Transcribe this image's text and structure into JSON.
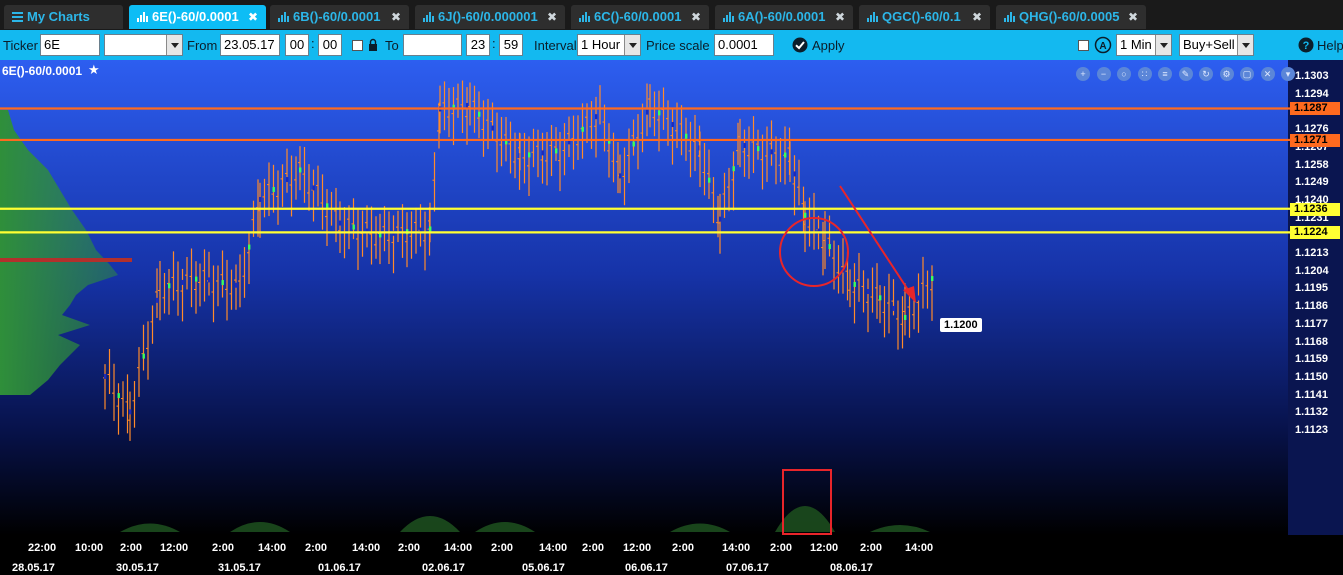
{
  "tabs": [
    {
      "label": "My Charts",
      "kind": "menu"
    },
    {
      "label": "6E()-60/0.0001",
      "active": true
    },
    {
      "label": "6B()-60/0.0001"
    },
    {
      "label": "6J()-60/0.000001"
    },
    {
      "label": "6C()-60/0.0001"
    },
    {
      "label": "6A()-60/0.0001"
    },
    {
      "label": "QGC()-60/0.1"
    },
    {
      "label": "QHG()-60/0.0005"
    }
  ],
  "toolbar": {
    "ticker_label": "Ticker",
    "ticker_value": "6E",
    "ticker_select_value": "",
    "from_label": "From",
    "from_date": "23.05.17",
    "from_hour": "00",
    "from_minute": "00",
    "to_label": "To",
    "to_date": "",
    "to_hour": "23",
    "to_minute": "59",
    "interval_label": "Interval",
    "interval_value": "1 Hour",
    "price_scale_label": "Price scale",
    "price_scale_value": "0.0001",
    "apply_label": "Apply",
    "minute_value": "1 Min",
    "side_value": "Buy+Sell",
    "help_label": "Help"
  },
  "chart": {
    "symbol_title": "6E()-60/0.0001",
    "current_price": "1.1200",
    "price_axis": [
      "1.1303",
      "1.1294",
      "1.1285",
      "1.1276",
      "1.1267",
      "1.1258",
      "1.1249",
      "1.1240",
      "1.1231",
      "1.1222",
      "1.1213",
      "1.1204",
      "1.1195",
      "1.1186",
      "1.1177",
      "1.1168",
      "1.1159",
      "1.1150",
      "1.1141",
      "1.1132",
      "1.1123"
    ],
    "levels": [
      {
        "price": "1.1287",
        "color": "#ff6a1f"
      },
      {
        "price": "1.1271",
        "color": "#ff6a1f"
      },
      {
        "price": "1.1236",
        "color": "#ffff33"
      },
      {
        "price": "1.1224",
        "color": "#ffff33"
      }
    ],
    "time_labels": [
      "22:00",
      "10:00",
      "2:00",
      "12:00",
      "2:00",
      "14:00",
      "2:00",
      "14:00",
      "2:00",
      "14:00",
      "2:00",
      "14:00",
      "2:00",
      "12:00",
      "2:00",
      "14:00",
      "2:00",
      "12:00",
      "2:00",
      "14:00"
    ],
    "date_labels": [
      "28.05.17",
      "30.05.17",
      "31.05.17",
      "01.06.17",
      "02.06.17",
      "05.06.17",
      "06.06.17",
      "07.06.17",
      "08.06.17"
    ],
    "controls": [
      "zoom-in-icon",
      "zoom-out-icon",
      "zoom-reset-icon",
      "grid-icon",
      "bars-icon",
      "edit-icon",
      "refresh-icon",
      "settings-icon",
      "fullscreen-icon",
      "close-icon",
      "dropdown-icon"
    ],
    "colors": {
      "bar": "#ff8a2a",
      "buy": "#3cff5a",
      "sell": "#1f2ab8",
      "background_top": "#2d5ef0",
      "background_bottom": "#000000",
      "annotation": "#e8252a"
    }
  }
}
